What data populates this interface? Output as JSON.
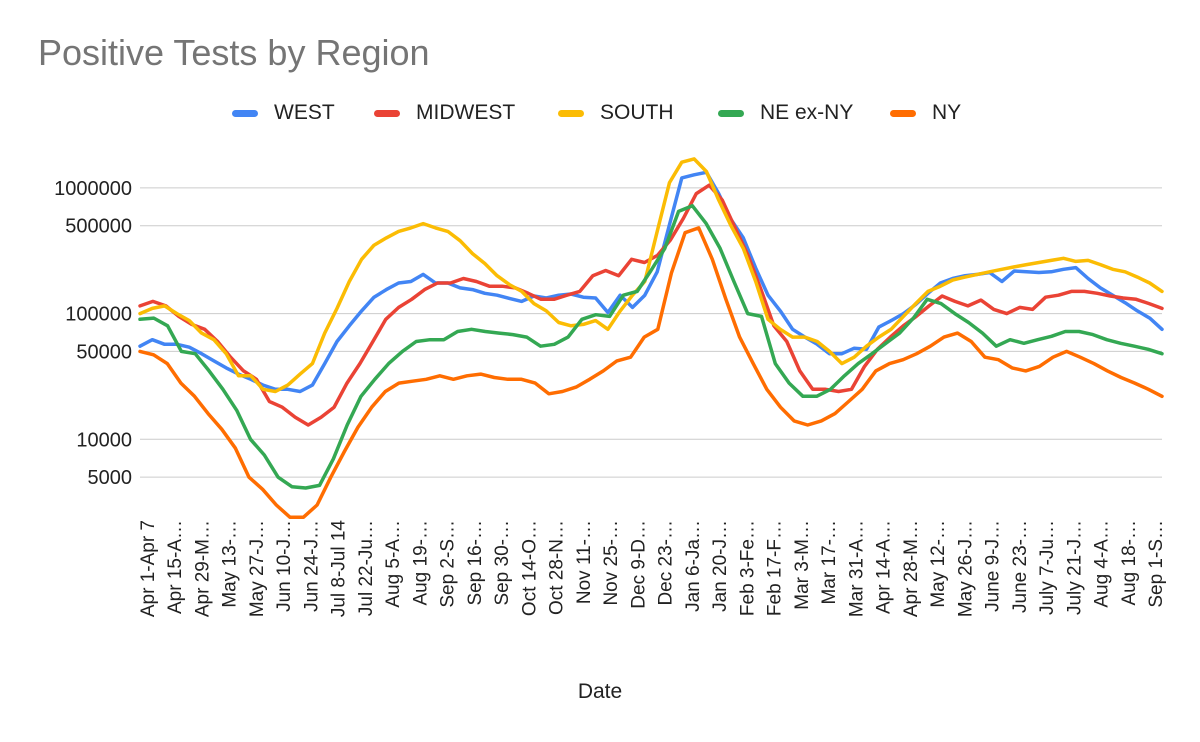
{
  "chart_data": {
    "type": "line",
    "title": "Positive Tests by Region",
    "xlabel": "Date",
    "ylabel": "",
    "y_scale": "log",
    "ylim": [
      2500,
      2000000
    ],
    "y_ticks": [
      {
        "value": 1000000,
        "label": "1000000"
      },
      {
        "value": 500000,
        "label": "500000"
      },
      {
        "value": 100000,
        "label": "100000"
      },
      {
        "value": 50000,
        "label": "50000"
      },
      {
        "value": 10000,
        "label": "10000"
      },
      {
        "value": 5000,
        "label": "5000"
      }
    ],
    "grid": true,
    "legend_position": "top",
    "x_tick_labels": [
      "Apr 1-Apr 7",
      "Apr 15-A…",
      "Apr 29-M…",
      "May 13-…",
      "May 27-J…",
      "Jun 10-J…",
      "Jun 24-J…",
      "Jul 8-Jul 14",
      "Jul 22-Ju…",
      "Aug 5-A…",
      "Aug 19-…",
      "Sep 2-S…",
      "Sep 16-…",
      "Sep 30-…",
      "Oct 14-O…",
      "Oct 28-N…",
      "Nov 11-…",
      "Nov 25-…",
      "Dec 9-D…",
      "Dec 23-…",
      "Jan 6-Ja…",
      "Jan 20-J…",
      "Feb 3-Fe…",
      "Feb 17-F…",
      "Mar 3-M…",
      "Mar 17-…",
      "Mar 31-A…",
      "Apr 14-A…",
      "Apr 28-M…",
      "May 12-…",
      "May 26-J…",
      "June 9-J…",
      "June 23-…",
      "July 7-Ju…",
      "July 21-J…",
      "Aug 4-A…",
      "Aug 18-…",
      "Sep 1-S…"
    ],
    "series": [
      {
        "name": "WEST",
        "color": "#4285f4",
        "values": [
          55000,
          62000,
          57000,
          57000,
          54000,
          48000,
          42000,
          37000,
          33000,
          30000,
          27000,
          25000,
          25000,
          24000,
          27000,
          40000,
          60000,
          80000,
          105000,
          135000,
          155000,
          175000,
          180000,
          205000,
          175000,
          175000,
          160000,
          155000,
          145000,
          140000,
          132000,
          125000,
          138000,
          133000,
          140000,
          143000,
          135000,
          133000,
          102000,
          140000,
          112000,
          140000,
          215000,
          510000,
          1200000,
          1270000,
          1330000,
          900000,
          560000,
          400000,
          230000,
          140000,
          105000,
          75000,
          65000,
          57000,
          48000,
          48000,
          53000,
          52000,
          78000,
          88000,
          100000,
          118000,
          145000,
          175000,
          190000,
          200000,
          205000,
          212000,
          180000,
          218000,
          215000,
          212000,
          215000,
          225000,
          232000,
          190000,
          160000,
          140000,
          122000,
          105000,
          92000,
          75000
        ]
      },
      {
        "name": "MIDWEST",
        "color": "#ea4335",
        "values": [
          115000,
          125000,
          115000,
          95000,
          82000,
          75000,
          60000,
          45000,
          35000,
          30000,
          20000,
          18000,
          15000,
          13000,
          15000,
          18000,
          28000,
          40000,
          60000,
          90000,
          112000,
          130000,
          155000,
          175000,
          175000,
          190000,
          180000,
          165000,
          165000,
          160000,
          145000,
          130000,
          130000,
          140000,
          150000,
          200000,
          220000,
          200000,
          270000,
          255000,
          290000,
          385000,
          570000,
          900000,
          1050000,
          800000,
          480000,
          290000,
          155000,
          80000,
          60000,
          35000,
          25000,
          25000,
          24000,
          25000,
          38000,
          52000,
          65000,
          80000,
          95000,
          115000,
          138000,
          125000,
          115000,
          128000,
          108000,
          100000,
          112000,
          108000,
          135000,
          140000,
          150000,
          150000,
          145000,
          138000,
          133000,
          130000,
          120000,
          110000
        ]
      },
      {
        "name": "SOUTH",
        "color": "#fbbc04",
        "values": [
          100000,
          110000,
          115000,
          100000,
          88000,
          70000,
          62000,
          48000,
          32000,
          32000,
          25000,
          24000,
          27000,
          33000,
          40000,
          70000,
          110000,
          180000,
          270000,
          350000,
          400000,
          450000,
          480000,
          520000,
          480000,
          450000,
          380000,
          300000,
          250000,
          200000,
          170000,
          150000,
          120000,
          105000,
          85000,
          80000,
          82000,
          88000,
          75000,
          105000,
          140000,
          180000,
          450000,
          1100000,
          1600000,
          1700000,
          1350000,
          800000,
          500000,
          330000,
          180000,
          90000,
          75000,
          65000,
          65000,
          60000,
          50000,
          40000,
          45000,
          55000,
          65000,
          75000,
          95000,
          120000,
          150000,
          165000,
          185000,
          195000,
          205000,
          215000,
          225000,
          235000,
          245000,
          255000,
          265000,
          275000,
          260000,
          265000,
          245000,
          225000,
          215000,
          195000,
          175000,
          150000
        ]
      },
      {
        "name": "NE ex-NY",
        "color": "#34a853",
        "values": [
          90000,
          92000,
          80000,
          50000,
          48000,
          35000,
          25000,
          17000,
          10000,
          7500,
          5000,
          4200,
          4100,
          4300,
          7000,
          13000,
          22000,
          30000,
          40000,
          50000,
          60000,
          62000,
          62000,
          72000,
          75000,
          72000,
          70000,
          68000,
          65000,
          55000,
          57000,
          65000,
          90000,
          98000,
          95000,
          140000,
          150000,
          220000,
          330000,
          650000,
          720000,
          520000,
          330000,
          180000,
          100000,
          95000,
          40000,
          28000,
          22000,
          22000,
          25000,
          32000,
          40000,
          48000,
          58000,
          70000,
          92000,
          130000,
          120000,
          100000,
          85000,
          70000,
          55000,
          62000,
          58000,
          62000,
          66000,
          72000,
          72000,
          68000,
          62000,
          58000,
          55000,
          52000,
          48000
        ]
      },
      {
        "name": "NY",
        "color": "#ff6d01",
        "values": [
          50000,
          47000,
          40000,
          28000,
          22000,
          16000,
          12000,
          8500,
          5000,
          4000,
          3000,
          2400,
          2400,
          3000,
          5000,
          8000,
          12500,
          18000,
          24000,
          28000,
          29000,
          30000,
          32000,
          30000,
          32000,
          33000,
          31000,
          30000,
          30000,
          28000,
          23000,
          24000,
          26000,
          30000,
          35000,
          42000,
          45000,
          65000,
          75000,
          210000,
          440000,
          480000,
          270000,
          130000,
          65000,
          40000,
          25000,
          18000,
          14000,
          13000,
          14000,
          16000,
          20000,
          25000,
          35000,
          40000,
          43000,
          48000,
          55000,
          65000,
          70000,
          60000,
          45000,
          43000,
          37000,
          35000,
          38000,
          45000,
          50000,
          45000,
          40000,
          35000,
          31000,
          28000,
          25000,
          22000
        ]
      }
    ]
  }
}
